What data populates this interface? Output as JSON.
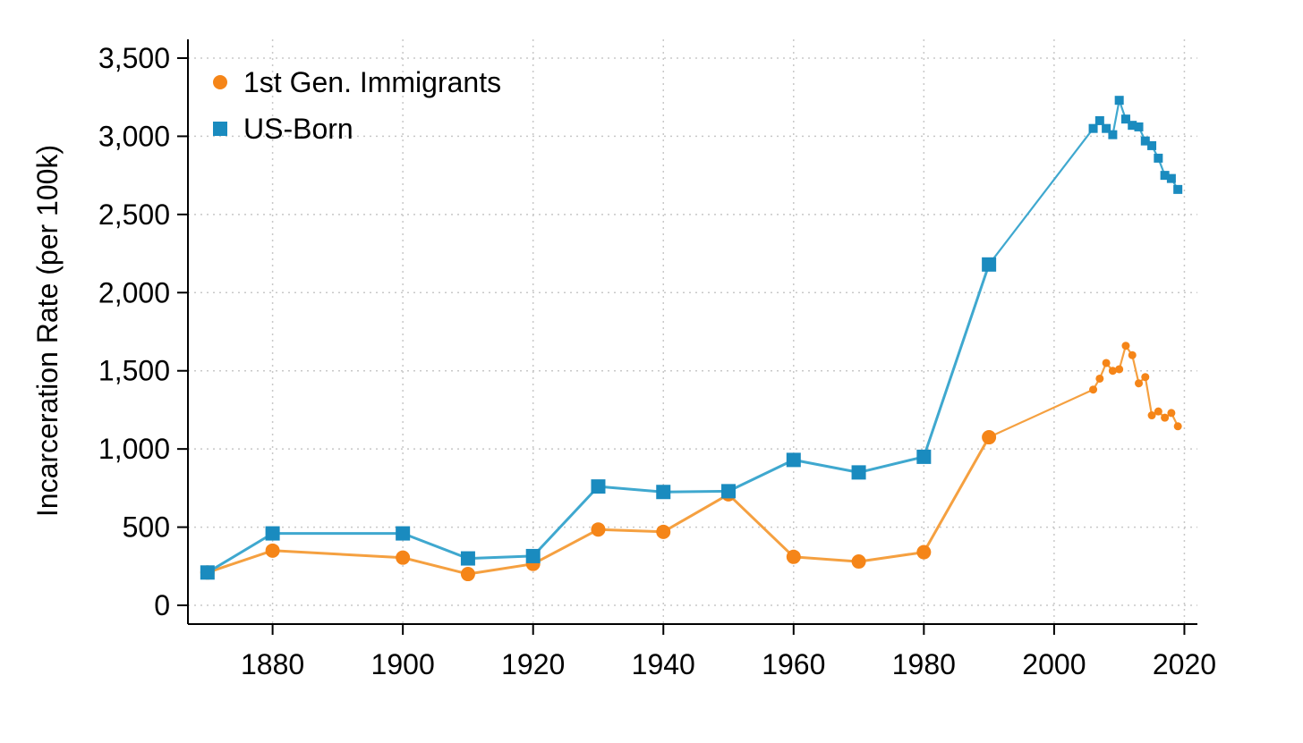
{
  "chart_data": {
    "type": "line",
    "title": "",
    "xlabel": "",
    "ylabel": "Incarceration Rate (per 100k)",
    "xlim": [
      1867,
      2022
    ],
    "ylim": [
      -120,
      3620
    ],
    "xticks": [
      1880,
      1900,
      1920,
      1940,
      1960,
      1980,
      2000,
      2020
    ],
    "xtick_labels": [
      "1880",
      "1900",
      "1920",
      "1940",
      "1960",
      "1980",
      "2000",
      "2020"
    ],
    "yticks": [
      0,
      500,
      1000,
      1500,
      2000,
      2500,
      3000,
      3500
    ],
    "ytick_labels": [
      "0",
      "500",
      "1,000",
      "1,500",
      "2,000",
      "2,500",
      "3,000",
      "3,500"
    ],
    "grid": true,
    "legend_position": "top-left",
    "series": [
      {
        "name": "1st Gen. Immigrants",
        "color": "#f58518",
        "line_color": "#f5a040",
        "marker": "circle",
        "decennial": {
          "x": [
            1870,
            1880,
            1900,
            1910,
            1920,
            1930,
            1940,
            1950,
            1960,
            1970,
            1980,
            1990
          ],
          "y": [
            210,
            350,
            305,
            200,
            265,
            485,
            470,
            710,
            310,
            280,
            340,
            1075
          ]
        },
        "annual": {
          "x": [
            2006,
            2007,
            2008,
            2009,
            2010,
            2011,
            2012,
            2013,
            2014,
            2015,
            2016,
            2017,
            2018,
            2019
          ],
          "y": [
            1380,
            1450,
            1550,
            1500,
            1510,
            1660,
            1600,
            1420,
            1460,
            1215,
            1240,
            1200,
            1230,
            1145
          ]
        }
      },
      {
        "name": "US-Born",
        "color": "#1a8bbf",
        "line_color": "#3fa8cf",
        "marker": "square",
        "decennial": {
          "x": [
            1870,
            1880,
            1900,
            1910,
            1920,
            1930,
            1940,
            1950,
            1960,
            1970,
            1980,
            1990
          ],
          "y": [
            210,
            460,
            460,
            300,
            315,
            760,
            725,
            730,
            930,
            850,
            950,
            2180
          ]
        },
        "annual": {
          "x": [
            2006,
            2007,
            2008,
            2009,
            2010,
            2011,
            2012,
            2013,
            2014,
            2015,
            2016,
            2017,
            2018,
            2019
          ],
          "y": [
            3050,
            3100,
            3050,
            3010,
            3230,
            3110,
            3070,
            3060,
            2970,
            2940,
            2860,
            2750,
            2730,
            2660
          ]
        }
      }
    ]
  }
}
